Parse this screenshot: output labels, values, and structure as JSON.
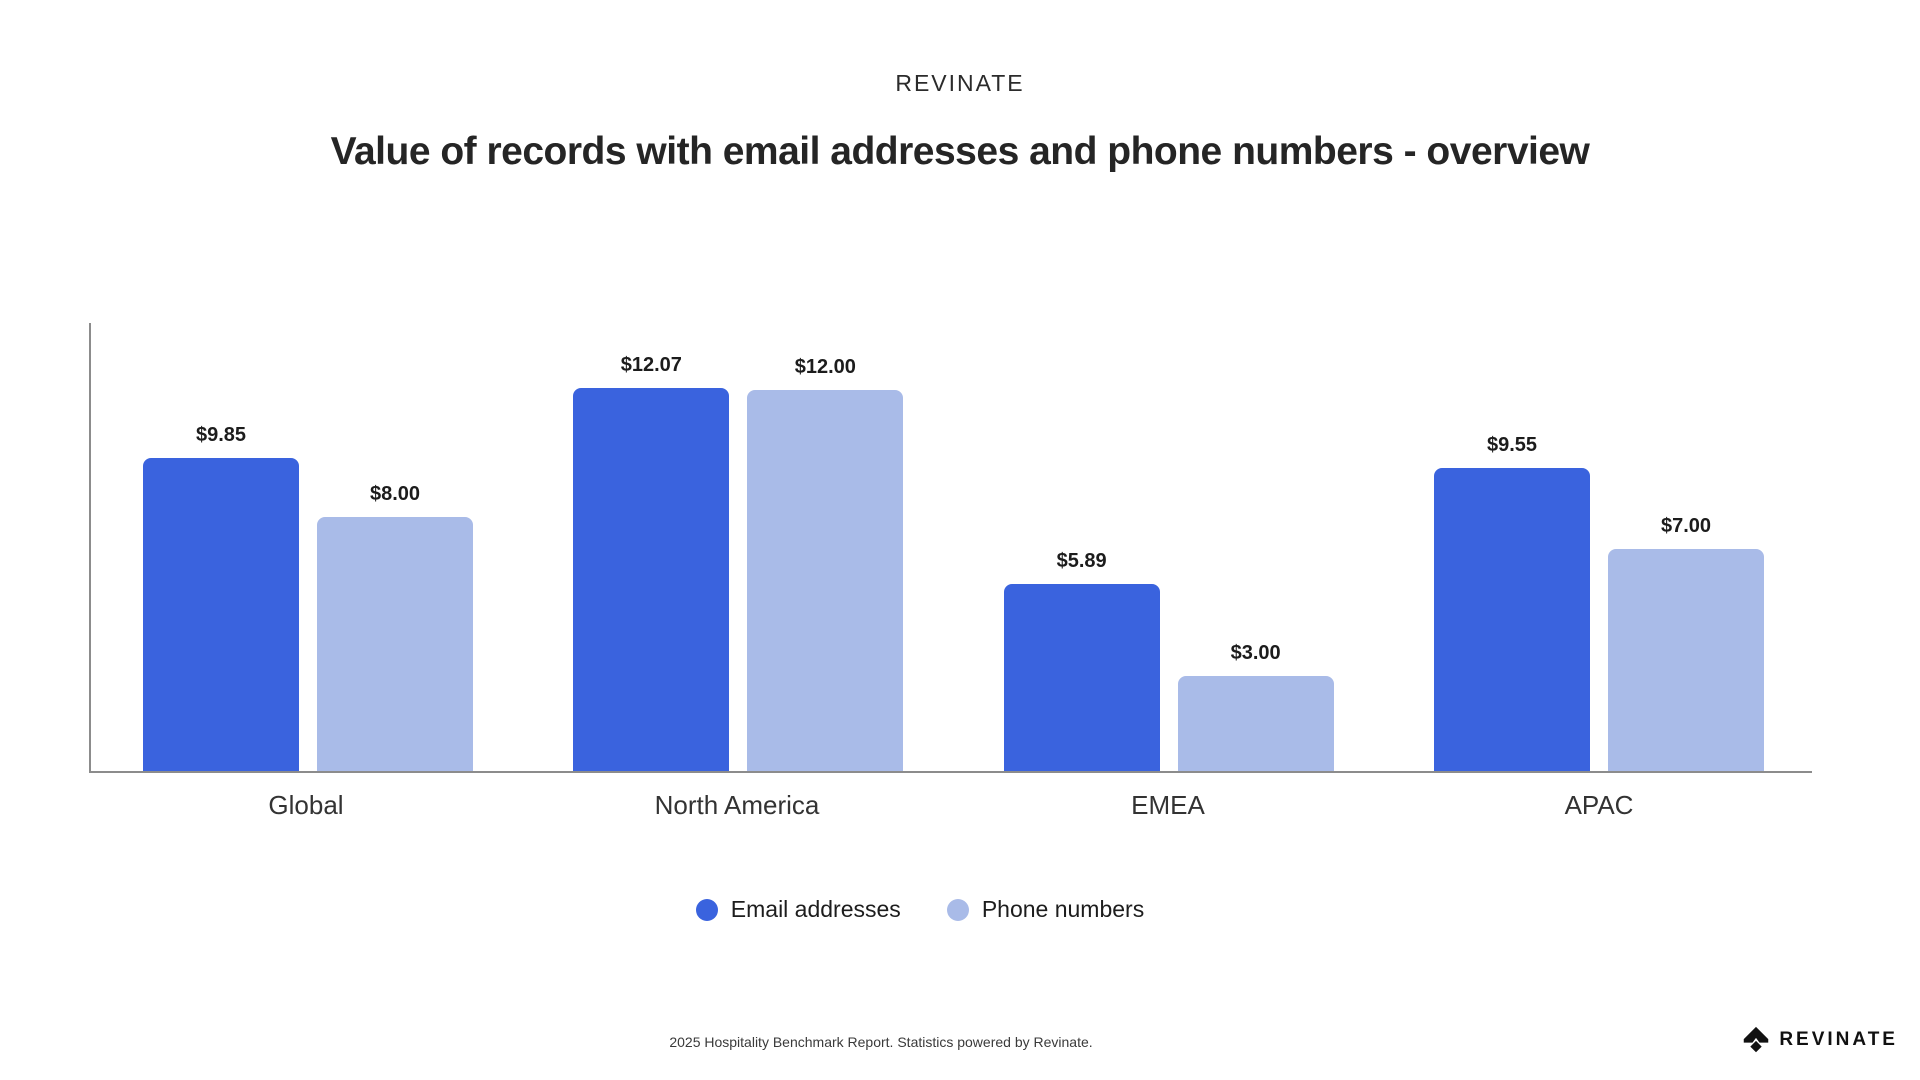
{
  "header": {
    "brand": "REVINATE",
    "title": "Value of records with email addresses and phone numbers - overview"
  },
  "chart_data": {
    "type": "bar",
    "title": "Value of records with email addresses and phone numbers - overview",
    "categories": [
      "Global",
      "North America",
      "EMEA",
      "APAC"
    ],
    "series": [
      {
        "name": "Email addresses",
        "color": "#3A63DE",
        "values": [
          9.85,
          12.07,
          5.89,
          9.55
        ],
        "labels": [
          "$9.85",
          "$12.07",
          "$5.89",
          "$9.55"
        ]
      },
      {
        "name": "Phone numbers",
        "color": "#A9BBE8",
        "values": [
          8.0,
          12.0,
          3.0,
          7.0
        ],
        "labels": [
          "$8.00",
          "$12.00",
          "$3.00",
          "$7.00"
        ]
      }
    ],
    "value_prefix": "$",
    "ylim": [
      0,
      14.1
    ],
    "grid": false,
    "y_axis_ticks": "none",
    "legend_position": "bottom"
  },
  "legend": {
    "items": [
      {
        "label": "Email addresses",
        "color": "#3A63DE"
      },
      {
        "label": "Phone numbers",
        "color": "#A9BBE8"
      }
    ]
  },
  "footer": {
    "note": "2025 Hospitality Benchmark Report. Statistics powered by Revinate.",
    "logo_text": "REVINATE"
  },
  "colors": {
    "email_bar": "#3A63DE",
    "phone_bar": "#A9BBE8",
    "axis": "#8C8C8C",
    "title_text": "#252525",
    "value_text": "#1C1C1C"
  }
}
